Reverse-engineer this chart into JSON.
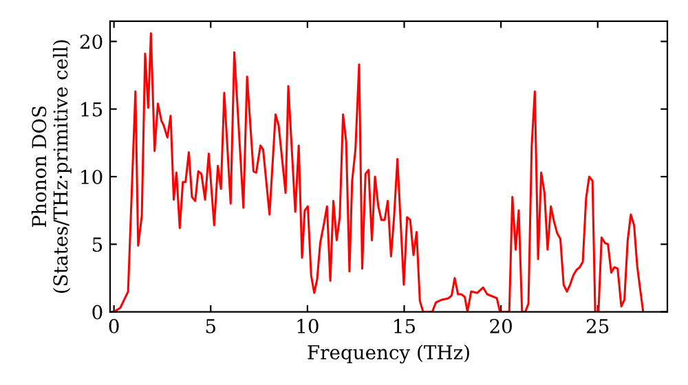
{
  "chart_data": {
    "type": "line",
    "xlabel": "Frequency (THz)",
    "ylabel": "Phonon DOS\n(States/THz·primitive cell)",
    "xlim": [
      -0.2,
      28.6
    ],
    "ylim": [
      0,
      21.5
    ],
    "xticks": [
      0,
      5,
      10,
      15,
      20,
      25
    ],
    "yticks": [
      0,
      5,
      10,
      15,
      20
    ],
    "grid": false,
    "legend": false,
    "series": [
      {
        "color": "#ff0000",
        "x": [
          0,
          0.33,
          0.73,
          1.11,
          1.25,
          1.44,
          1.61,
          1.77,
          1.91,
          2.1,
          2.27,
          2.46,
          2.57,
          2.76,
          2.93,
          3.09,
          3.23,
          3.4,
          3.56,
          3.7,
          3.87,
          4.03,
          4.2,
          4.36,
          4.52,
          4.71,
          4.9,
          5.18,
          5.37,
          5.53,
          5.7,
          6.03,
          6.22,
          6.69,
          6.88,
          7.21,
          7.35,
          7.57,
          7.71,
          8.04,
          8.35,
          8.51,
          8.87,
          9.01,
          9.37,
          9.55,
          9.72,
          9.86,
          10.02,
          10.19,
          10.35,
          10.5,
          10.66,
          10.85,
          11.01,
          11.18,
          11.34,
          11.51,
          11.67,
          11.84,
          12.0,
          12.17,
          12.31,
          12.48,
          12.67,
          12.83,
          13.0,
          13.16,
          13.33,
          13.49,
          13.66,
          13.82,
          13.99,
          14.15,
          14.32,
          14.48,
          14.65,
          14.98,
          15.15,
          15.31,
          15.48,
          15.64,
          15.81,
          15.98,
          16.45,
          16.64,
          16.95,
          17.28,
          17.45,
          17.61,
          17.78,
          17.95,
          18.13,
          18.27,
          18.46,
          18.77,
          19.08,
          19.29,
          19.64,
          19.79,
          19.95,
          20.43,
          20.59,
          20.76,
          20.92,
          21.09,
          21.26,
          21.42,
          21.59,
          21.75,
          21.92,
          22.08,
          22.25,
          22.41,
          22.58,
          22.74,
          22.91,
          23.07,
          23.24,
          23.41,
          23.57,
          23.74,
          23.9,
          24.07,
          24.23,
          24.4,
          24.56,
          24.73,
          24.87,
          25.04,
          25.2,
          25.37,
          25.53,
          25.7,
          25.86,
          26.03,
          26.22,
          26.38,
          26.55,
          26.71,
          26.88,
          27.04,
          27.21,
          27.35
        ],
        "values": [
          0,
          0.3,
          1.5,
          16.3,
          4.9,
          7.1,
          19.1,
          15.1,
          20.6,
          11.9,
          15.4,
          14.1,
          13.8,
          12.9,
          14.5,
          8.3,
          10.3,
          6.2,
          9.6,
          9.6,
          11.8,
          8.5,
          8.2,
          10.4,
          10.2,
          8.3,
          11.7,
          6.4,
          10.8,
          9.1,
          16.2,
          8.0,
          19.2,
          7.7,
          17.4,
          10.4,
          10.3,
          12.3,
          12.0,
          7.2,
          14.6,
          13.8,
          8.8,
          16.7,
          7.4,
          12.3,
          4.0,
          7.5,
          7.8,
          2.7,
          1.4,
          2.4,
          5.1,
          6.5,
          7.8,
          2.3,
          8.2,
          5.3,
          7.0,
          14.6,
          12.6,
          3.0,
          9.7,
          12.0,
          18.3,
          3.2,
          10.2,
          10.5,
          5.3,
          10.0,
          7.8,
          6.8,
          6.8,
          8.2,
          4.1,
          7.1,
          11.3,
          2.0,
          7.0,
          6.8,
          4.2,
          5.9,
          0.8,
          0,
          0,
          0.7,
          0.9,
          1.0,
          1.2,
          2.5,
          1.3,
          1.3,
          1.1,
          0,
          1.5,
          1.4,
          1.8,
          1.3,
          1.1,
          1.0,
          0,
          0,
          8.5,
          4.6,
          7.5,
          0,
          0,
          0.6,
          12.3,
          16.3,
          3.9,
          10.3,
          8.8,
          4.6,
          7.8,
          6.7,
          5.8,
          5.4,
          2.0,
          1.5,
          2.0,
          2.7,
          3.1,
          3.3,
          3.7,
          8.4,
          10.0,
          9.7,
          0,
          0,
          5.5,
          5.1,
          5.0,
          2.9,
          3.3,
          3.2,
          0.4,
          0.9,
          5.3,
          7.2,
          6.4,
          3.4,
          1.5,
          0
        ]
      }
    ]
  }
}
